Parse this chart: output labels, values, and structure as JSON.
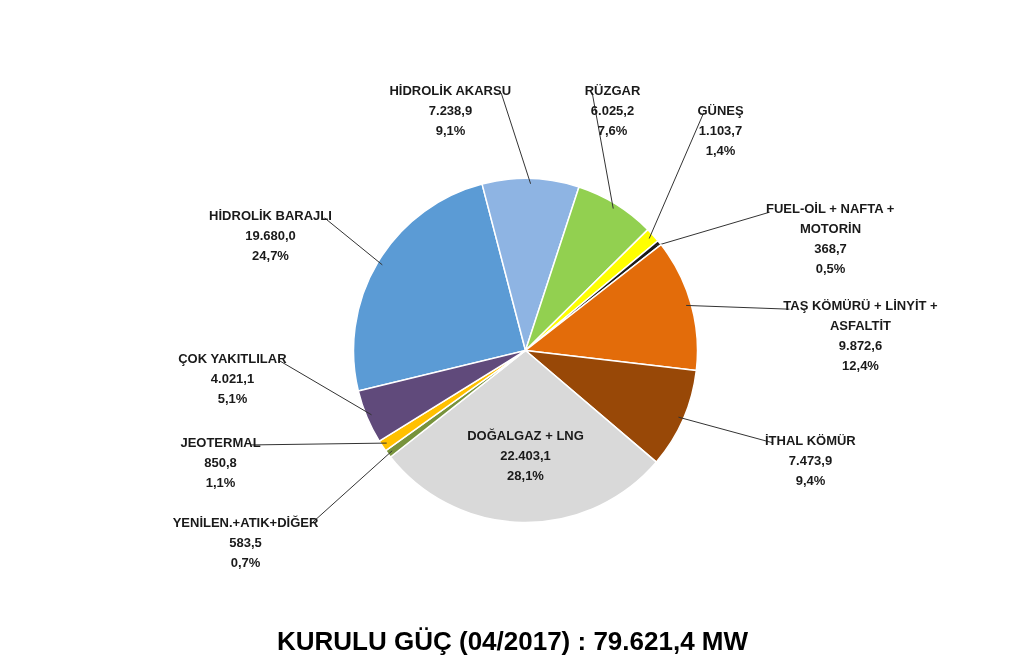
{
  "chart_data": {
    "type": "pie",
    "title": "KURULU GÜÇ (04/2017) : 79.621,4 MW",
    "categories": [
      "HİDROLİK BARAJLI",
      "HİDROLİK AKARSU",
      "RÜZGAR",
      "GÜNEŞ",
      "FUEL-OİL + NAFTA +\nMOTORİN",
      "TAŞ KÖMÜRÜ + LİNYİT +\nASFALTİT",
      "İTHAL KÖMÜR",
      "DOĞALGAZ + LNG",
      "YENİLEN.+ATIK+DİĞER",
      "JEOTERMAL",
      "ÇOK YAKITLILAR"
    ],
    "values": [
      19680.0,
      7238.9,
      6025.2,
      1103.7,
      368.7,
      9872.6,
      7473.9,
      22403.1,
      583.5,
      850.8,
      4021.1
    ],
    "value_labels": [
      "19.680,0\n24,7%",
      "7.238,9\n9,1%",
      "6.025,2\n7,6%",
      "1.103,7\n1,4%",
      "368,7\n0,5%",
      "9.872,6\n12,4%",
      "7.473,9\n9,4%",
      "22.403,1\n28,1%",
      "583,5\n0,7%",
      "850,8\n1,1%",
      "4.021,1\n5,1%"
    ],
    "colors": [
      "#5b9bd5",
      "#8eb4e3",
      "#92d050",
      "#ffff00",
      "#1a1a1a",
      "#e36c0a",
      "#984807",
      "#d9d9d9",
      "#77933c",
      "#ffc000",
      "#604a7b"
    ],
    "legend": false
  }
}
